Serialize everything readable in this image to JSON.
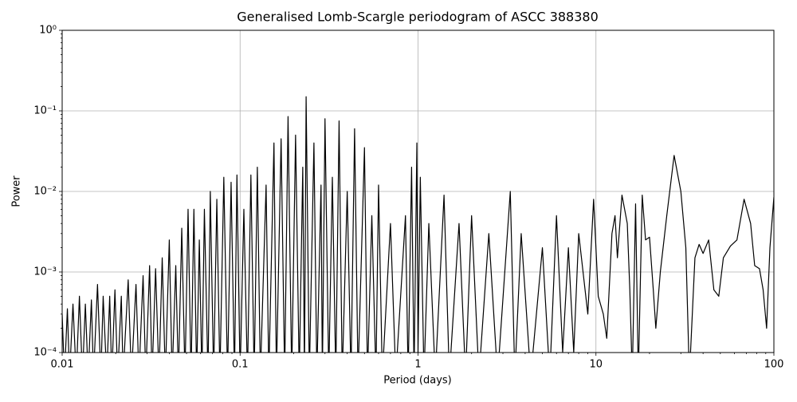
{
  "chart_data": {
    "type": "line",
    "title": "Generalised Lomb-Scargle periodogram of ASCC 388380",
    "xlabel": "Period (days)",
    "ylabel": "Power",
    "xscale": "log",
    "yscale": "log",
    "grid": true,
    "color": "#000000",
    "xlim": [
      0.01,
      100
    ],
    "ylim": [
      0.0001,
      1
    ],
    "xticks": [
      0.01,
      0.1,
      1,
      10,
      100
    ],
    "yticks": [
      {
        "value": 0.0001,
        "label": "10⁻⁴"
      },
      {
        "value": 0.001,
        "label": "10⁻³"
      },
      {
        "value": 0.01,
        "label": "10⁻²"
      },
      {
        "value": 0.1,
        "label": "10⁻¹"
      },
      {
        "value": 1,
        "label": "10⁰"
      }
    ],
    "xminorticks": [
      0.02,
      0.03,
      0.04,
      0.05,
      0.06,
      0.07,
      0.08,
      0.09,
      0.2,
      0.3,
      0.4,
      0.5,
      0.6,
      0.7,
      0.8,
      0.9,
      2,
      3,
      4,
      5,
      6,
      7,
      8,
      9,
      20,
      30,
      40,
      50,
      60,
      70,
      80,
      90
    ],
    "yminorticks": [
      0.0002,
      0.0003,
      0.0004,
      0.0005,
      0.0006,
      0.0007,
      0.0008,
      0.0009,
      0.002,
      0.003,
      0.004,
      0.005,
      0.006,
      0.007,
      0.008,
      0.009,
      0.02,
      0.03,
      0.04,
      0.05,
      0.06,
      0.07,
      0.08,
      0.09,
      0.2,
      0.3,
      0.4,
      0.5,
      0.6,
      0.7,
      0.8,
      0.9
    ],
    "x": [
      0.01,
      0.0103,
      0.0107,
      0.011,
      0.0115,
      0.012,
      0.0125,
      0.013,
      0.0135,
      0.014,
      0.0146,
      0.015,
      0.0158,
      0.0165,
      0.017,
      0.0178,
      0.0185,
      0.019,
      0.0198,
      0.0205,
      0.0215,
      0.022,
      0.0235,
      0.0245,
      0.026,
      0.027,
      0.0285,
      0.0295,
      0.031,
      0.032,
      0.0335,
      0.035,
      0.0365,
      0.038,
      0.04,
      0.0415,
      0.0435,
      0.045,
      0.047,
      0.049,
      0.051,
      0.053,
      0.055,
      0.057,
      0.059,
      0.061,
      0.063,
      0.066,
      0.068,
      0.071,
      0.074,
      0.077,
      0.081,
      0.085,
      0.089,
      0.093,
      0.096,
      0.1,
      0.105,
      0.11,
      0.115,
      0.12,
      0.125,
      0.13,
      0.14,
      0.145,
      0.155,
      0.16,
      0.17,
      0.178,
      0.186,
      0.195,
      0.205,
      0.215,
      0.225,
      0.23,
      0.235,
      0.245,
      0.26,
      0.27,
      0.285,
      0.29,
      0.3,
      0.315,
      0.33,
      0.345,
      0.36,
      0.375,
      0.4,
      0.42,
      0.44,
      0.46,
      0.5,
      0.52,
      0.55,
      0.58,
      0.6,
      0.63,
      0.7,
      0.75,
      0.85,
      0.88,
      0.92,
      0.95,
      0.985,
      1.0,
      1.03,
      1.08,
      1.15,
      1.25,
      1.4,
      1.5,
      1.7,
      1.85,
      2.0,
      2.2,
      2.5,
      2.8,
      3.3,
      3.5,
      3.8,
      4.3,
      5.0,
      5.5,
      6.0,
      6.5,
      7.0,
      7.5,
      8.0,
      9.0,
      9.7,
      10.3,
      11,
      11.5,
      12.3,
      12.8,
      13.2,
      14,
      15,
      15.5,
      16,
      16.7,
      17.3,
      18.2,
      19,
      20,
      21,
      21.7,
      23,
      25,
      27.5,
      30,
      32,
      33.5,
      36,
      38,
      40,
      43,
      46,
      49,
      52,
      57,
      62,
      68,
      74,
      78,
      83,
      87,
      91,
      95,
      100
    ],
    "values": [
      0.0003,
      5e-05,
      0.00035,
      5e-05,
      0.0004,
      5e-05,
      0.0005,
      5e-05,
      0.0004,
      5e-05,
      0.00045,
      5e-05,
      0.0007,
      5e-05,
      0.0005,
      5e-05,
      0.0005,
      5e-05,
      0.0006,
      5e-05,
      0.0005,
      5e-05,
      0.0008,
      5e-05,
      0.0007,
      5e-05,
      0.0009,
      5e-05,
      0.0012,
      5e-05,
      0.0011,
      5e-05,
      0.0015,
      5e-05,
      0.0025,
      5e-05,
      0.0012,
      5e-05,
      0.0035,
      5e-05,
      0.006,
      5e-05,
      0.006,
      5e-05,
      0.0025,
      5e-05,
      0.006,
      5e-05,
      0.01,
      5e-05,
      0.008,
      5e-05,
      0.015,
      5e-05,
      0.013,
      5e-05,
      0.016,
      5e-05,
      0.006,
      5e-05,
      0.016,
      5e-05,
      0.02,
      5e-05,
      0.012,
      5e-05,
      0.04,
      5e-05,
      0.045,
      5e-05,
      0.085,
      5e-05,
      0.05,
      5e-05,
      0.02,
      5e-05,
      0.15,
      5e-05,
      0.04,
      5e-05,
      0.012,
      5e-05,
      0.08,
      5e-05,
      0.015,
      5e-05,
      0.075,
      5e-05,
      0.01,
      5e-05,
      0.06,
      5e-05,
      0.035,
      5e-05,
      0.005,
      5e-05,
      0.012,
      5e-05,
      0.004,
      5e-05,
      0.005,
      5e-05,
      0.02,
      5e-05,
      0.04,
      0.0001,
      0.015,
      5e-05,
      0.004,
      5e-05,
      0.009,
      5e-05,
      0.004,
      5e-05,
      0.005,
      5e-05,
      0.003,
      5e-05,
      0.01,
      5e-05,
      0.003,
      5e-05,
      0.002,
      5e-05,
      0.005,
      0.0001,
      0.002,
      0.0001,
      0.003,
      0.0003,
      0.008,
      0.0005,
      0.0003,
      0.00015,
      0.003,
      0.005,
      0.0015,
      0.009,
      0.004,
      0.0006,
      5e-05,
      0.007,
      5e-05,
      0.009,
      0.0025,
      0.0027,
      0.0006,
      0.0002,
      0.001,
      0.005,
      0.028,
      0.01,
      0.002,
      5e-05,
      0.0015,
      0.0022,
      0.0017,
      0.0025,
      0.0006,
      0.0005,
      0.0015,
      0.0021,
      0.0025,
      0.008,
      0.004,
      0.0012,
      0.0011,
      0.0006,
      0.0002,
      0.002,
      0.0085
    ]
  }
}
